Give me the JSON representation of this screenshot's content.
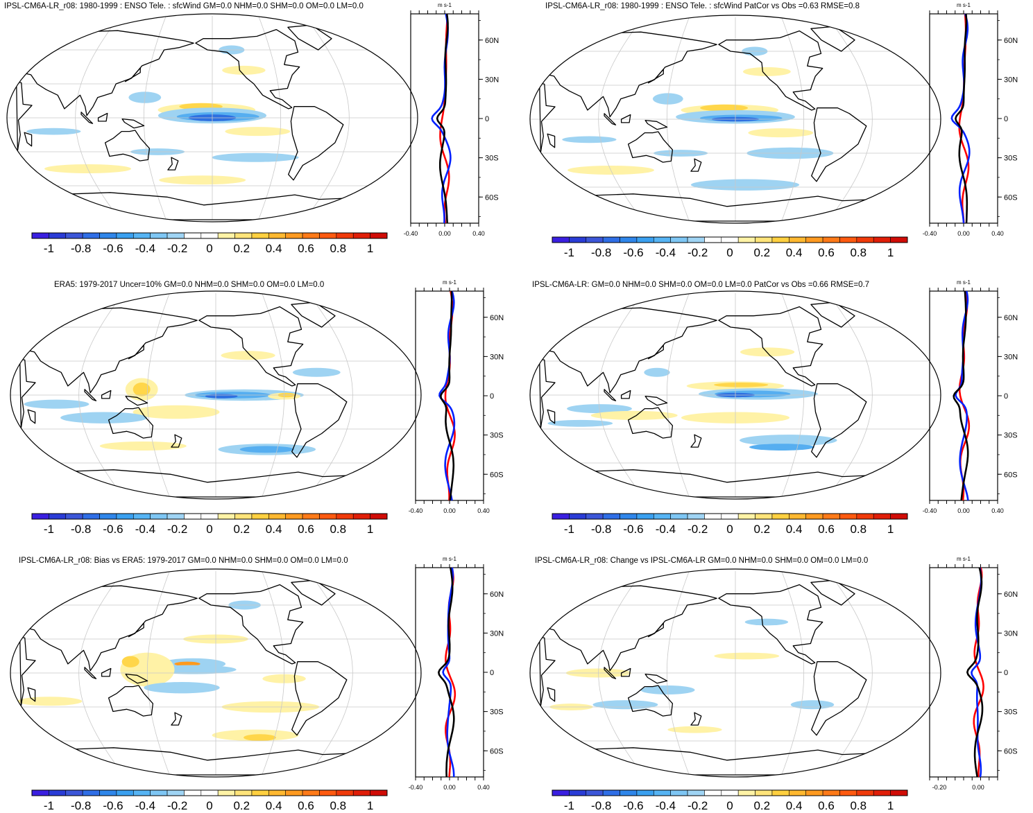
{
  "panels": [
    {
      "id": "p1",
      "title": "IPSL-CM6A-LR_r08: 1980-1999 : ENSO Tele. : sfcWind GM=0.0 NHM=0.0 SHM=0.0 OM=0.0 LM=0.0",
      "zonal": {
        "unit": "m s-1",
        "xticks": [
          "-0.40",
          "0.00",
          "0.40"
        ],
        "xrange": [
          -0.4,
          0.4
        ],
        "lat_ticks": [
          "60N",
          "30N",
          "0",
          "30S",
          "60S"
        ]
      },
      "colorbar": {
        "labels": [
          "-1",
          "-0.8",
          "-0.6",
          "-0.4",
          "-0.2",
          "0",
          "0.2",
          "0.4",
          "0.6",
          "0.8",
          "1"
        ]
      }
    },
    {
      "id": "p2",
      "title": "IPSL-CM6A-LR_r08: 1980-1999 : ENSO Tele. : sfcWind PatCor vs Obs =0.63 RMSE=0.8",
      "zonal": {
        "unit": "m s-1",
        "xticks": [
          "-0.40",
          "0.00",
          "0.40"
        ],
        "xrange": [
          -0.4,
          0.4
        ],
        "lat_ticks": [
          "60N",
          "30N",
          "0",
          "30S",
          "60S"
        ]
      },
      "colorbar": {
        "labels": [
          "-1",
          "-0.8",
          "-0.6",
          "-0.4",
          "-0.2",
          "0",
          "0.2",
          "0.4",
          "0.6",
          "0.8",
          "1"
        ]
      }
    },
    {
      "id": "p3",
      "title": "ERA5: 1979-2017 Uncer=10% GM=0.0 NHM=0.0 SHM=0.0 OM=0.0 LM=0.0",
      "zonal": {
        "unit": "m s-1",
        "xticks": [
          "-0.40",
          "0.00",
          "0.40"
        ],
        "xrange": [
          -0.4,
          0.4
        ],
        "lat_ticks": [
          "60N",
          "30N",
          "0",
          "30S",
          "60S"
        ]
      },
      "colorbar": {
        "labels": [
          "-1",
          "-0.8",
          "-0.6",
          "-0.4",
          "-0.2",
          "0",
          "0.2",
          "0.4",
          "0.6",
          "0.8",
          "1"
        ]
      }
    },
    {
      "id": "p4",
      "title": "IPSL-CM6A-LR: GM=0.0 NHM=0.0 SHM=0.0 OM=0.0 LM=0.0 PatCor vs Obs =0.66 RMSE=0.7",
      "zonal": {
        "unit": "m s-1",
        "xticks": [
          "-0.40",
          "0.00",
          "0.40"
        ],
        "xrange": [
          -0.4,
          0.4
        ],
        "lat_ticks": [
          "60N",
          "30N",
          "0",
          "30S",
          "60S"
        ]
      },
      "colorbar": {
        "labels": [
          "-1",
          "-0.8",
          "-0.6",
          "-0.4",
          "-0.2",
          "0",
          "0.2",
          "0.4",
          "0.6",
          "0.8",
          "1"
        ]
      }
    },
    {
      "id": "p5",
      "title": "IPSL-CM6A-LR_r08: Bias vs ERA5: 1979-2017 GM=0.0 NHM=0.0 SHM=0.0 OM=0.0 LM=0.0",
      "zonal": {
        "unit": "m s-1",
        "xticks": [
          "-0.40",
          "0.00",
          "0.40"
        ],
        "xrange": [
          -0.4,
          0.4
        ],
        "lat_ticks": [
          "60N",
          "30N",
          "0",
          "30S",
          "60S"
        ]
      },
      "colorbar": {
        "labels": [
          "-1",
          "-0.8",
          "-0.6",
          "-0.4",
          "-0.2",
          "0",
          "0.2",
          "0.4",
          "0.6",
          "0.8",
          "1"
        ]
      }
    },
    {
      "id": "p6",
      "title": "IPSL-CM6A-LR_r08: Change vs IPSL-CM6A-LR GM=0.0 NHM=0.0 SHM=0.0 OM=0.0 LM=0.0",
      "zonal": {
        "unit": "m s-1",
        "xticks": [
          "-0.20",
          "0.00"
        ],
        "xrange": [
          -0.25,
          0.1
        ],
        "lat_ticks": [
          "60N",
          "30N",
          "0",
          "30S",
          "60S"
        ]
      },
      "colorbar": {
        "labels": [
          "-1",
          "-0.8",
          "-0.6",
          "-0.4",
          "-0.2",
          "0",
          "0.2",
          "0.4",
          "0.6",
          "0.8",
          "1"
        ]
      }
    }
  ],
  "colors": {
    "palette": [
      "#3a1fe0",
      "#2a3cd6",
      "#3c56d8",
      "#2f6ee6",
      "#2f86ea",
      "#3aa0f0",
      "#56b4f4",
      "#7ec6f4",
      "#9fd4f4",
      "#ffffff",
      "#ffffff",
      "#fff3a6",
      "#ffe47a",
      "#ffd040",
      "#ffb830",
      "#ff9a20",
      "#ff7a18",
      "#ff5a10",
      "#f03a0a",
      "#e01e08",
      "#d00c06"
    ],
    "neg_light": "#9ed3f2",
    "neg_mid": "#56aef0",
    "neg_dark": "#2d6fe0",
    "pos_light": "#fff2a6",
    "pos_mid": "#ffd64a",
    "pos_dark": "#ff9a1e",
    "line_red": "#ff0000",
    "line_blue": "#0020ff",
    "line_black": "#000000"
  }
}
